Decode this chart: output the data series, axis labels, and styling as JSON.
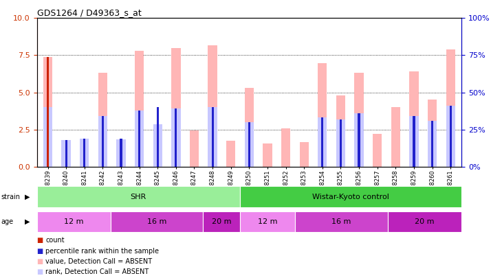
{
  "title": "GDS1264 / D49363_s_at",
  "samples": [
    "GSM38239",
    "GSM38240",
    "GSM38241",
    "GSM38242",
    "GSM38243",
    "GSM38244",
    "GSM38245",
    "GSM38246",
    "GSM38247",
    "GSM38248",
    "GSM38249",
    "GSM38250",
    "GSM38251",
    "GSM38252",
    "GSM38253",
    "GSM38254",
    "GSM38255",
    "GSM38256",
    "GSM38257",
    "GSM38258",
    "GSM38259",
    "GSM38260",
    "GSM38261"
  ],
  "value_absent": [
    7.4,
    1.8,
    1.9,
    6.3,
    1.85,
    7.8,
    2.85,
    8.0,
    2.45,
    8.15,
    1.75,
    5.3,
    1.55,
    2.6,
    1.65,
    6.95,
    4.8,
    6.3,
    2.2,
    4.0,
    6.4,
    4.5,
    7.9
  ],
  "rank_absent": [
    4.0,
    1.8,
    1.9,
    3.4,
    1.85,
    3.8,
    2.85,
    3.9,
    0.0,
    4.0,
    0.0,
    3.0,
    0.0,
    0.0,
    0.0,
    3.3,
    3.2,
    3.6,
    0.0,
    0.0,
    3.4,
    3.1,
    4.1
  ],
  "count_values": [
    7.4,
    0.0,
    0.0,
    0.0,
    0.0,
    0.0,
    0.0,
    0.0,
    0.0,
    0.0,
    0.0,
    0.0,
    0.0,
    0.0,
    0.0,
    0.0,
    0.0,
    0.0,
    0.0,
    0.0,
    0.0,
    0.0,
    0.0
  ],
  "percentile_values": [
    4.0,
    1.8,
    1.9,
    3.4,
    1.9,
    3.8,
    4.0,
    3.9,
    0.0,
    4.0,
    0.0,
    3.0,
    0.0,
    0.0,
    0.0,
    3.3,
    3.2,
    3.6,
    0.0,
    0.0,
    3.4,
    3.1,
    4.1
  ],
  "strain_groups": [
    {
      "label": "SHR",
      "start": 0,
      "end": 11,
      "color": "#99EE99"
    },
    {
      "label": "Wistar-Kyoto control",
      "start": 11,
      "end": 23,
      "color": "#44CC44"
    }
  ],
  "age_groups": [
    {
      "label": "12 m",
      "start": 0,
      "end": 4,
      "color": "#EE88EE"
    },
    {
      "label": "16 m",
      "start": 4,
      "end": 9,
      "color": "#CC44CC"
    },
    {
      "label": "20 m",
      "start": 9,
      "end": 11,
      "color": "#BB22BB"
    },
    {
      "label": "12 m",
      "start": 11,
      "end": 14,
      "color": "#EE88EE"
    },
    {
      "label": "16 m",
      "start": 14,
      "end": 19,
      "color": "#CC44CC"
    },
    {
      "label": "20 m",
      "start": 19,
      "end": 23,
      "color": "#BB22BB"
    }
  ],
  "color_count": "#CC2200",
  "color_percentile": "#2222CC",
  "color_value_absent": "#FFB6B6",
  "color_rank_absent": "#C8C8FF",
  "ylim": [
    0,
    10
  ],
  "y2lim": [
    0,
    100
  ],
  "yticks": [
    0,
    2.5,
    5.0,
    7.5,
    10
  ],
  "y2ticks": [
    0,
    25,
    50,
    75,
    100
  ],
  "bg_color": "#ffffff",
  "left_color": "#CC3300",
  "right_color": "#0000CC"
}
